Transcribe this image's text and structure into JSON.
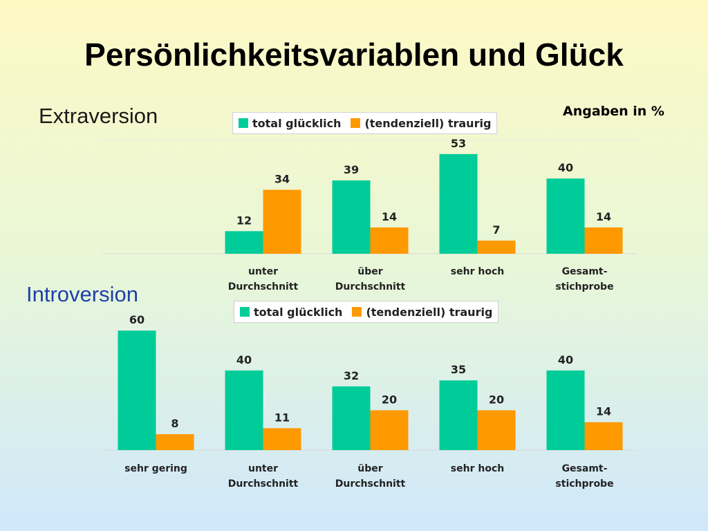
{
  "title": "Persönlichkeitsvariablen und Glück",
  "units_note": "Angaben in %",
  "colors": {
    "gluecklich": "#00cc99",
    "traurig": "#ff9900"
  },
  "chart_data": [
    {
      "type": "bar",
      "section_label": "Extraversion",
      "categories": [
        [
          "unter",
          "Durchschnitt"
        ],
        [
          "über",
          "Durchschnitt"
        ],
        [
          "sehr hoch"
        ],
        [
          "Gesamt-",
          "stichprobe"
        ]
      ],
      "series": [
        {
          "name": "total glücklich",
          "values": [
            12,
            39,
            53,
            40
          ]
        },
        {
          "name": "(tendenziell) traurig",
          "values": [
            34,
            14,
            7,
            14
          ]
        }
      ],
      "legend": "top",
      "grid": false
    },
    {
      "type": "bar",
      "section_label": "Introversion",
      "categories": [
        [
          "sehr gering"
        ],
        [
          "unter",
          "Durchschnitt"
        ],
        [
          "über",
          "Durchschnitt"
        ],
        [
          "sehr hoch"
        ],
        [
          "Gesamt-",
          "stichprobe"
        ]
      ],
      "series": [
        {
          "name": "total glücklich",
          "values": [
            60,
            40,
            32,
            35,
            40
          ]
        },
        {
          "name": "(tendenziell) traurig",
          "values": [
            8,
            11,
            20,
            20,
            14
          ]
        }
      ],
      "legend": "top",
      "grid": false
    }
  ]
}
